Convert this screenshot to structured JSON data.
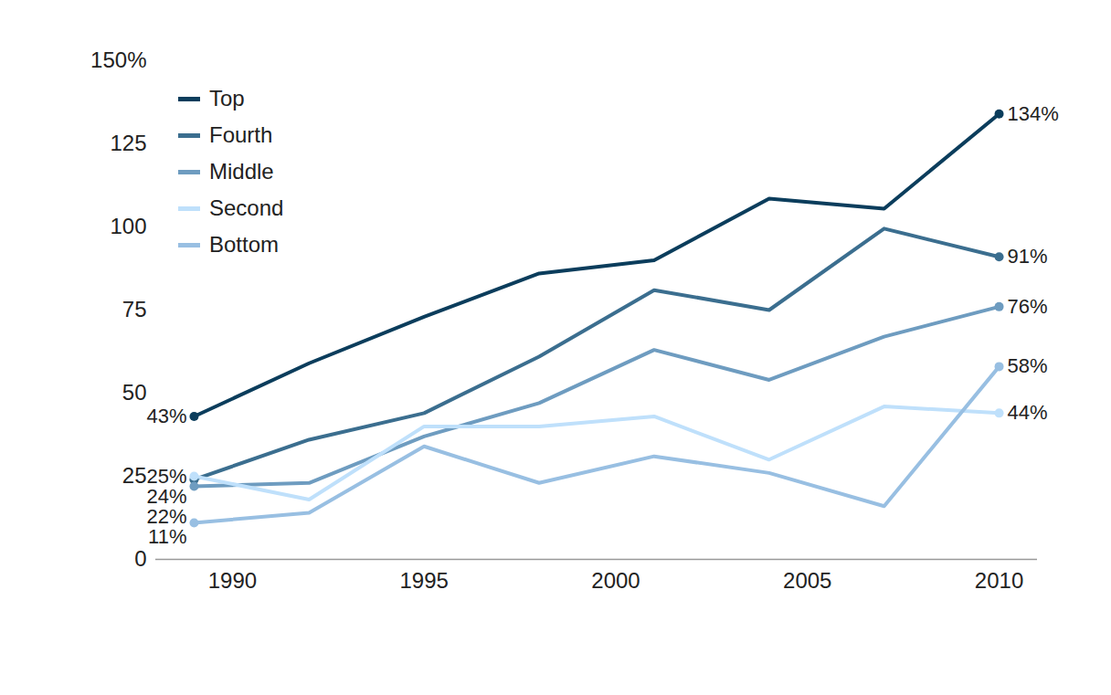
{
  "chart_data": {
    "type": "line",
    "x": [
      1989,
      1992,
      1995,
      1998,
      2001,
      2004,
      2007,
      2010
    ],
    "xlim": [
      1988,
      2011
    ],
    "xticks": [
      1990,
      1995,
      2000,
      2005,
      2010
    ],
    "ylim": [
      0,
      150
    ],
    "yticks": [
      0,
      25,
      50,
      75,
      100,
      125,
      {
        "value": 150,
        "label": "150%"
      }
    ],
    "legend": "top-left",
    "data_labels": true,
    "series": [
      {
        "name": "Top",
        "color": "#0b3d5c",
        "values": [
          43,
          59,
          73,
          86,
          90,
          108.5,
          105.5,
          134
        ],
        "value_labels": [
          "43%",
          null,
          null,
          null,
          null,
          null,
          null,
          "134%"
        ]
      },
      {
        "name": "Fourth",
        "color": "#3b6e8f",
        "values": [
          24,
          36,
          44,
          61,
          81,
          75,
          99.5,
          91
        ],
        "value_labels": [
          "24%",
          null,
          null,
          null,
          null,
          null,
          null,
          "91%"
        ]
      },
      {
        "name": "Middle",
        "color": "#6e9cc0",
        "values": [
          22,
          23,
          37,
          47,
          63,
          54,
          67,
          76
        ],
        "value_labels": [
          "22%",
          null,
          null,
          null,
          null,
          null,
          null,
          "76%"
        ]
      },
      {
        "name": "Second",
        "color": "#bfe0fb",
        "values": [
          25,
          18,
          40,
          40,
          43,
          30,
          46,
          44
        ],
        "value_labels": [
          "25%",
          null,
          null,
          null,
          null,
          null,
          null,
          "44%"
        ]
      },
      {
        "name": "Bottom",
        "color": "#98bfe2",
        "values": [
          11,
          14,
          34,
          23,
          31,
          26,
          16,
          58
        ],
        "value_labels": [
          "11%",
          null,
          null,
          null,
          null,
          null,
          null,
          "58%"
        ]
      }
    ]
  }
}
